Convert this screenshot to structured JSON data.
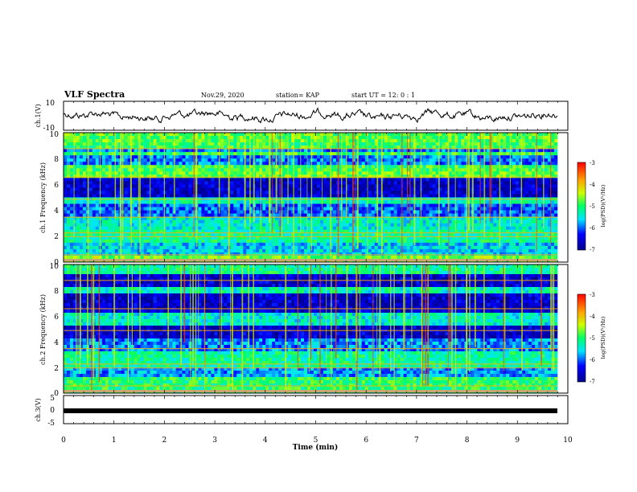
{
  "header": {
    "title": "VLF Spectra",
    "date": "Nov.29, 2020",
    "station": "station= KAP",
    "start": "start  UT =   12: 0   : 1"
  },
  "chart_data": [
    {
      "type": "line",
      "panel": "ch1-waveform",
      "ylabel": "ch.1(V)",
      "ylim": [
        -10,
        10
      ],
      "yticks": [
        "10",
        "-10"
      ],
      "xlim": [
        0,
        10
      ],
      "note_values": "continuous noisy waveform oscillating roughly between -6 and +6 V over 0–9.8 min"
    },
    {
      "type": "heatmap",
      "panel": "ch1-spectrogram",
      "ylabel": "ch.1 Frequency (kHz)",
      "ylim": [
        0,
        10
      ],
      "yticks": [
        "0",
        "2",
        "4",
        "6",
        "8",
        "10"
      ],
      "xlim": [
        0,
        10
      ],
      "colorbar": {
        "label": "log(PSD)(V²/Hz)",
        "range": [
          -7,
          -3
        ],
        "ticks": [
          "-3",
          "-4",
          "-5",
          "-6",
          "-7"
        ]
      }
    },
    {
      "type": "heatmap",
      "panel": "ch2-spectrogram",
      "ylabel": "ch.2 Frequency (kHz)",
      "ylim": [
        0,
        10
      ],
      "yticks": [
        "0",
        "2",
        "4",
        "6",
        "8",
        "10"
      ],
      "xlim": [
        0,
        10
      ],
      "colorbar": {
        "label": "log(PSD)(V²/Hz)",
        "range": [
          -7,
          -3
        ],
        "ticks": [
          "-3",
          "-4",
          "-5",
          "-6",
          "-7"
        ]
      }
    },
    {
      "type": "line",
      "panel": "ch3-waveform",
      "ylabel": "ch.3(V)",
      "ylim": [
        -5,
        5
      ],
      "yticks": [
        "5",
        "0",
        "-5"
      ],
      "xlim": [
        0,
        10
      ],
      "note_values": "flat thick trace near 0 V"
    }
  ],
  "xaxis": {
    "label": "Time (min)",
    "ticks": [
      "0",
      "1",
      "2",
      "3",
      "4",
      "5",
      "6",
      "7",
      "8",
      "9",
      "10"
    ]
  },
  "colors": {
    "low": "#00008b",
    "mid": "#00ff80",
    "high": "#ff0000",
    "trace": "#000000"
  }
}
